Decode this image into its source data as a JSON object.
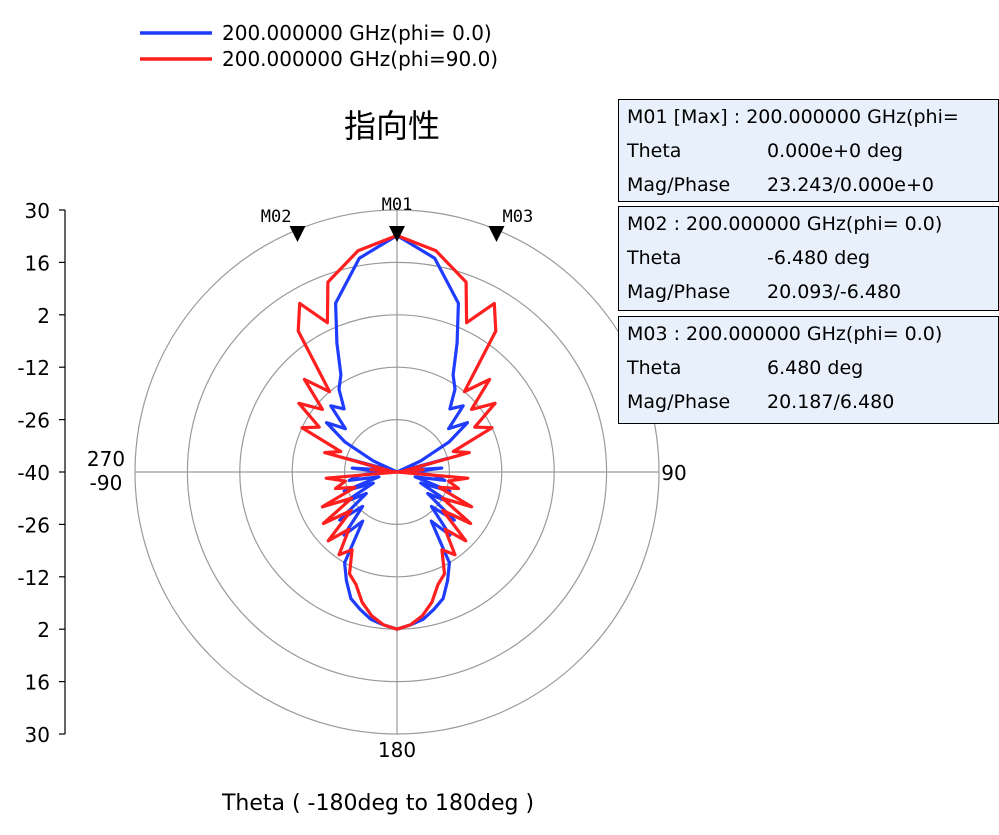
{
  "chart_data": {
    "type": "polar",
    "title": "指向性",
    "xlabel": "Theta ( -180deg to 180deg )",
    "radial_ticks": [
      "30",
      "16",
      "2",
      "-12",
      "-26",
      "-40"
    ],
    "radial_range": [
      -40,
      30
    ],
    "angle_labels": {
      "top": "",
      "right": "90",
      "bottom": "180",
      "left_upper": "270",
      "left_lower": "-90"
    },
    "grid": true,
    "legend_position": "top-left",
    "colors": {
      "phi0": "#1f3cff",
      "phi90": "#ff1f1f"
    },
    "series": [
      {
        "name": "200.000000 GHz(phi= 0.0)",
        "color": "#1f3cff",
        "theta_deg": [
          0,
          10,
          20,
          25,
          30,
          35,
          40,
          45,
          50,
          55,
          60,
          65,
          70,
          75,
          80,
          85,
          90,
          95,
          100,
          105,
          110,
          115,
          120,
          125,
          130,
          135,
          140,
          145,
          150,
          155,
          160,
          165,
          170,
          175,
          180
        ],
        "mag_db": [
          23.2,
          18,
          8,
          -2,
          -10,
          -13,
          -18,
          -15,
          -22,
          -17,
          -24,
          -33,
          -40,
          -26,
          -37,
          -28,
          -36,
          -30,
          -27,
          -35,
          -25,
          -33,
          -24,
          -30,
          -20,
          -27,
          -18,
          -24,
          -12,
          -8,
          -4,
          -2,
          0,
          1,
          2
        ]
      },
      {
        "name": "200.000000 GHz(phi=90.0)",
        "color": "#ff1f1f",
        "theta_deg": [
          0,
          10,
          20,
          25,
          30,
          35,
          40,
          45,
          50,
          55,
          60,
          65,
          70,
          75,
          80,
          85,
          90,
          95,
          100,
          105,
          110,
          115,
          120,
          125,
          130,
          135,
          140,
          145,
          150,
          155,
          160,
          165,
          170,
          175,
          180
        ],
        "mag_db": [
          23.2,
          20,
          14,
          4,
          12,
          6,
          -12,
          -5,
          -14,
          -8,
          -16,
          -12,
          -24,
          -20,
          -38,
          -33,
          -40,
          -21,
          -26,
          -23,
          -28,
          -18,
          -26,
          -16,
          -24,
          -14,
          -20,
          -13,
          -16,
          -10,
          -8,
          -4,
          -1,
          1,
          2
        ]
      }
    ],
    "markers": [
      {
        "id": "M01",
        "theta_deg": 0.0,
        "mag": 23.243
      },
      {
        "id": "M02",
        "theta_deg": -6.48,
        "mag": 20.093
      },
      {
        "id": "M03",
        "theta_deg": 6.48,
        "mag": 20.187
      }
    ]
  },
  "legend": [
    {
      "label": "200.000000 GHz(phi= 0.0)",
      "color": "#1f3cff"
    },
    {
      "label": "200.000000 GHz(phi=90.0)",
      "color": "#ff1f1f"
    }
  ],
  "marker_boxes": [
    {
      "header": "M01 [Max] : 200.000000 GHz(phi=",
      "theta_label": "Theta",
      "theta_value": "0.000e+0 deg",
      "mag_label": "Mag/Phase",
      "mag_value": "23.243/0.000e+0"
    },
    {
      "header": "M02 : 200.000000 GHz(phi= 0.0)",
      "theta_label": "Theta",
      "theta_value": "-6.480 deg",
      "mag_label": "Mag/Phase",
      "mag_value": "20.093/-6.480"
    },
    {
      "header": "M03 : 200.000000 GHz(phi= 0.0)",
      "theta_label": "Theta",
      "theta_value": "6.480 deg",
      "mag_label": "Mag/Phase",
      "mag_value": "20.187/6.480"
    }
  ]
}
